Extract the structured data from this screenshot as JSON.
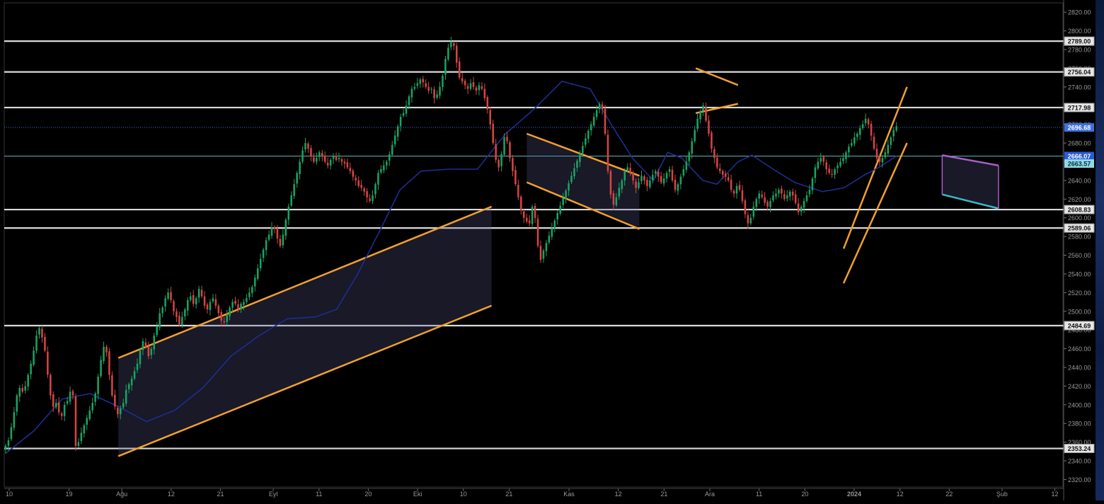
{
  "chart_data": {
    "type": "candlestick",
    "y_axis": {
      "ylim": [
        2312,
        2830
      ],
      "ticks": [
        2320,
        2340,
        2360,
        2380,
        2400,
        2420,
        2440,
        2460,
        2480,
        2500,
        2520,
        2540,
        2560,
        2580,
        2600,
        2620,
        2640,
        2660,
        2680,
        2700,
        2720,
        2740,
        2760,
        2780,
        2800,
        2820
      ],
      "tick_labels": [
        "2320.00",
        "2340.00",
        "2360.00",
        "2380.00",
        "2400.00",
        "2420.00",
        "2440.00",
        "2460.00",
        "2480.00",
        "2500.00",
        "2520.00",
        "2540.00",
        "2560.00",
        "2580.00",
        "2600.00",
        "2620.00",
        "2640.00",
        "2660.00",
        "2680.00",
        "2700.00",
        "2720.00",
        "2740.00",
        "2760.00",
        "2780.00",
        "2800.00",
        "2820.00"
      ]
    },
    "x_axis": {
      "labels": [
        "10",
        "19",
        "Ağu",
        "12",
        "21",
        "Eyl",
        "11",
        "20",
        "Eki",
        "10",
        "21",
        "Kas",
        "12",
        "21",
        "Ara",
        "11",
        "20",
        "2024",
        "12",
        "22",
        "Şub",
        "12"
      ],
      "label_slots": [
        0.5,
        9,
        16.5,
        23.5,
        30.5,
        38,
        44.5,
        51.5,
        58.5,
        65,
        71.5,
        80,
        87,
        93.5,
        100,
        107,
        113.5,
        120.5,
        127,
        134,
        141.5,
        149
      ]
    },
    "horizontal_levels": [
      {
        "value": 2789.0,
        "label": "2789.00",
        "color": "#d9d9d9"
      },
      {
        "value": 2756.04,
        "label": "2756.04",
        "color": "#d9d9d9"
      },
      {
        "value": 2717.98,
        "label": "2717.98",
        "color": "#d9d9d9"
      },
      {
        "value": 2608.83,
        "label": "2608.83",
        "color": "#d9d9d9"
      },
      {
        "value": 2589.06,
        "label": "2589.06",
        "color": "#d9d9d9"
      },
      {
        "value": 2484.69,
        "label": "2484.69",
        "color": "#d9d9d9"
      },
      {
        "value": 2353.24,
        "label": "2353.24",
        "color": "#d9d9d9"
      }
    ],
    "price_markers": [
      {
        "value": 2696.68,
        "label": "2696.68",
        "color": "#3d6fe0",
        "line": "dotted"
      },
      {
        "value": 2666.07,
        "label": "2666.07",
        "color": "#2a5bd6",
        "line": "solid-teal"
      },
      {
        "value": 2663.57,
        "label": "2663.57",
        "color": "#8fd8e6",
        "line": "none"
      }
    ],
    "closes": [
      2356,
      2362,
      2376,
      2392,
      2410,
      2418,
      2414,
      2420,
      2432,
      2444,
      2458,
      2474,
      2482,
      2472,
      2458,
      2432,
      2410,
      2398,
      2402,
      2392,
      2388,
      2400,
      2404,
      2414,
      2410,
      2356,
      2360,
      2370,
      2378,
      2386,
      2394,
      2402,
      2412,
      2430,
      2448,
      2462,
      2456,
      2432,
      2410,
      2398,
      2390,
      2396,
      2402,
      2416,
      2422,
      2428,
      2436,
      2444,
      2458,
      2468,
      2462,
      2452,
      2460,
      2474,
      2484,
      2498,
      2504,
      2514,
      2520,
      2512,
      2500,
      2494,
      2486,
      2494,
      2502,
      2512,
      2516,
      2508,
      2514,
      2524,
      2516,
      2506,
      2502,
      2510,
      2514,
      2506,
      2498,
      2490,
      2488,
      2496,
      2504,
      2510,
      2508,
      2502,
      2508,
      2510,
      2514,
      2520,
      2526,
      2536,
      2546,
      2556,
      2566,
      2576,
      2582,
      2590,
      2588,
      2578,
      2570,
      2582,
      2598,
      2612,
      2624,
      2636,
      2648,
      2660,
      2672,
      2680,
      2674,
      2666,
      2660,
      2664,
      2670,
      2666,
      2660,
      2656,
      2662,
      2666,
      2662,
      2664,
      2660,
      2658,
      2654,
      2650,
      2644,
      2640,
      2634,
      2632,
      2628,
      2622,
      2618,
      2624,
      2636,
      2648,
      2652,
      2656,
      2660,
      2668,
      2678,
      2688,
      2698,
      2708,
      2712,
      2720,
      2730,
      2738,
      2740,
      2744,
      2748,
      2745,
      2740,
      2736,
      2738,
      2728,
      2732,
      2740,
      2752,
      2770,
      2782,
      2788,
      2784,
      2766,
      2750,
      2746,
      2742,
      2738,
      2744,
      2740,
      2736,
      2742,
      2738,
      2728,
      2716,
      2700,
      2680,
      2662,
      2654,
      2668,
      2686,
      2682,
      2664,
      2650,
      2636,
      2622,
      2608,
      2600,
      2596,
      2594,
      2612,
      2600,
      2570,
      2555,
      2565,
      2573,
      2581,
      2589,
      2597,
      2605,
      2613,
      2621,
      2629,
      2637,
      2645,
      2653,
      2661,
      2669,
      2677,
      2685,
      2693,
      2700,
      2708,
      2715,
      2722,
      2716,
      2690,
      2650,
      2625,
      2614,
      2622,
      2632,
      2640,
      2650,
      2654,
      2648,
      2640,
      2632,
      2638,
      2645,
      2640,
      2634,
      2640,
      2646,
      2650,
      2644,
      2638,
      2642,
      2648,
      2652,
      2640,
      2630,
      2636,
      2644,
      2652,
      2660,
      2670,
      2682,
      2694,
      2706,
      2714,
      2720,
      2704,
      2690,
      2674,
      2664,
      2654,
      2650,
      2646,
      2644,
      2640,
      2630,
      2626,
      2634,
      2630,
      2618,
      2604,
      2594,
      2600,
      2612,
      2620,
      2626,
      2622,
      2616,
      2612,
      2618,
      2624,
      2626,
      2630,
      2626,
      2620,
      2624,
      2628,
      2624,
      2616,
      2606,
      2612,
      2618,
      2624,
      2630,
      2642,
      2654,
      2660,
      2664,
      2660,
      2652,
      2648,
      2646,
      2652,
      2656,
      2660,
      2664,
      2670,
      2676,
      2680,
      2686,
      2690,
      2696,
      2700,
      2706,
      2700,
      2688,
      2674,
      2664,
      2660,
      2664,
      2670,
      2678,
      2686,
      2694,
      2698
    ],
    "candle_slots": [
      0,
      126.5
    ],
    "moving_average": [
      {
        "x": 0,
        "v": 2348
      },
      {
        "x": 4,
        "v": 2372
      },
      {
        "x": 8,
        "v": 2406
      },
      {
        "x": 12,
        "v": 2412
      },
      {
        "x": 16,
        "v": 2398
      },
      {
        "x": 20,
        "v": 2382
      },
      {
        "x": 24,
        "v": 2394
      },
      {
        "x": 28,
        "v": 2418
      },
      {
        "x": 32,
        "v": 2452
      },
      {
        "x": 36,
        "v": 2474
      },
      {
        "x": 40,
        "v": 2492
      },
      {
        "x": 44,
        "v": 2494
      },
      {
        "x": 47,
        "v": 2502
      },
      {
        "x": 50,
        "v": 2540
      },
      {
        "x": 53,
        "v": 2584
      },
      {
        "x": 56,
        "v": 2630
      },
      {
        "x": 59,
        "v": 2650
      },
      {
        "x": 63,
        "v": 2652
      },
      {
        "x": 67,
        "v": 2652
      },
      {
        "x": 71,
        "v": 2690
      },
      {
        "x": 75,
        "v": 2716
      },
      {
        "x": 79,
        "v": 2746
      },
      {
        "x": 83,
        "v": 2738
      },
      {
        "x": 86,
        "v": 2700
      },
      {
        "x": 89,
        "v": 2664
      },
      {
        "x": 92,
        "v": 2640
      },
      {
        "x": 94,
        "v": 2670
      },
      {
        "x": 96,
        "v": 2664
      },
      {
        "x": 99,
        "v": 2640
      },
      {
        "x": 101,
        "v": 2636
      },
      {
        "x": 104,
        "v": 2660
      },
      {
        "x": 106,
        "v": 2667
      },
      {
        "x": 109,
        "v": 2652
      },
      {
        "x": 112,
        "v": 2638
      },
      {
        "x": 116,
        "v": 2628
      },
      {
        "x": 119,
        "v": 2632
      },
      {
        "x": 122,
        "v": 2646
      },
      {
        "x": 124,
        "v": 2654
      },
      {
        "x": 126.5,
        "v": 2666
      }
    ],
    "annotations": {
      "channels": [
        {
          "name": "ascending",
          "upper": [
            [
              16,
              2450
            ],
            [
              69,
              2612
            ]
          ],
          "lower": [
            [
              16,
              2345
            ],
            [
              69,
              2506
            ]
          ],
          "fill": true
        },
        {
          "name": "descending-1",
          "upper": [
            [
              74,
              2690
            ],
            [
              90,
              2645
            ]
          ],
          "lower": [
            [
              74,
              2638
            ],
            [
              90,
              2588
            ]
          ],
          "fill": true
        },
        {
          "name": "pennant",
          "upper": [
            [
              98,
              2760
            ],
            [
              104,
              2742
            ]
          ],
          "lower": [
            [
              98,
              2712
            ],
            [
              104,
              2722
            ]
          ],
          "fill": false
        },
        {
          "name": "rising-wedge",
          "upper": [
            [
              119,
              2567
            ],
            [
              128,
              2740
            ]
          ],
          "lower": [
            [
              119,
              2530
            ],
            [
              128,
              2680
            ]
          ],
          "fill": false
        },
        {
          "name": "flag",
          "upper": [
            [
              133,
              2667
            ],
            [
              141,
              2656
            ]
          ],
          "lower": [
            [
              133,
              2625
            ],
            [
              141,
              2610
            ]
          ],
          "fill": true
        }
      ],
      "channel_color": "#f0a030",
      "flag_color": "#a75fc9",
      "flag_bottom_color": "#3fb6c8"
    },
    "colors": {
      "background": "#000000",
      "up_candle": "#19a463",
      "down_candle": "#d64545",
      "moving_average": "#1e2d8f",
      "level_line": "#d9d9d9",
      "axis_text": "#9a9a9a",
      "channel_fill": "rgba(90,90,140,0.28)"
    },
    "grid": false,
    "legend": "none"
  }
}
